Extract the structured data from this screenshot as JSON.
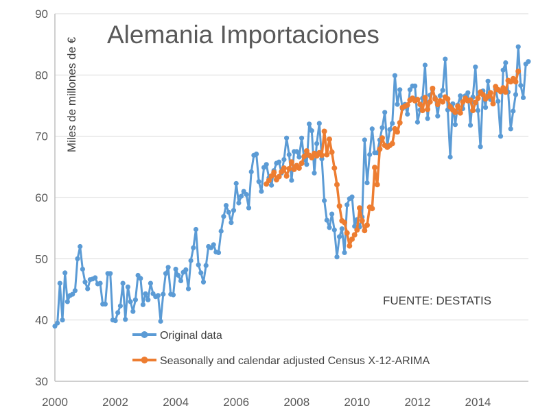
{
  "chart_data": {
    "type": "line",
    "title": "Alemania Importaciones",
    "ylabel": "Miles de millones de €",
    "xlabel": "",
    "source": "FUENTE: DESTATIS",
    "ylim": [
      30,
      90
    ],
    "xlim": [
      2000,
      2015.67
    ],
    "yticks": [
      30,
      40,
      50,
      60,
      70,
      80,
      90
    ],
    "xticks": [
      2000,
      2002,
      2004,
      2006,
      2008,
      2010,
      2012,
      2014
    ],
    "grid": true,
    "legend": "bottom-left, inside plot",
    "series": [
      {
        "name": "Original data",
        "color": "#5b9bd5",
        "x_start": 2000,
        "step": 0.0833333,
        "values": [
          39,
          39.5,
          46,
          40,
          47.7,
          43,
          44,
          44.2,
          44.8,
          50,
          52,
          48.3,
          46.2,
          45.1,
          46.6,
          46.7,
          46.9,
          45.9,
          46,
          42.6,
          42.6,
          47.6,
          47.6,
          40,
          39.9,
          41.2,
          42.3,
          46,
          40.1,
          45.4,
          43,
          41.4,
          43.3,
          47.3,
          46.8,
          42.5,
          44.3,
          43.3,
          46,
          44.3,
          43.8,
          44,
          39.8,
          44.2,
          47.6,
          48.6,
          44.2,
          44.1,
          48.3,
          47.3,
          46.4,
          47.8,
          48.2,
          45.1,
          49.7,
          51.8,
          54.8,
          49,
          47.7,
          46.2,
          48.9,
          52,
          51.8,
          52.3,
          51.1,
          51,
          54.5,
          56.9,
          58.7,
          57.6,
          55.9,
          57.9,
          62.3,
          59.1,
          60.2,
          61,
          60.5,
          58.3,
          64.2,
          66.9,
          67.1,
          62.6,
          61,
          64.9,
          65.4,
          63.2,
          62,
          64.4,
          65.6,
          65.8,
          64,
          66.2,
          69.7,
          67,
          62.8,
          67.5,
          67.5,
          66.6,
          69.7,
          66.2,
          65.4,
          72,
          70.9,
          64,
          68.8,
          72.1,
          66.3,
          59.5,
          56.3,
          55.1,
          57.3,
          54.7,
          50.3,
          53.6,
          54.9,
          51,
          58.8,
          59.8,
          60.1,
          55.3,
          56.4,
          55.2,
          56.8,
          69.4,
          62.4,
          67,
          71.2,
          67.3,
          67.3,
          69.4,
          71.4,
          73.9,
          68.4,
          71.1,
          72.1,
          79.9,
          75.2,
          77.6,
          74.5,
          75.2,
          73.6,
          77.6,
          78.2,
          78.2,
          72.3,
          74.3,
          76.2,
          81.6,
          72.9,
          76.7,
          77.6,
          76.3,
          73.3,
          76.6,
          77.5,
          82.6,
          74.3,
          66.6,
          75.3,
          71.9,
          75.1,
          76.6,
          74.5,
          76.6,
          77.1,
          71.8,
          76.4,
          81.3,
          74.2,
          68.3,
          77.4,
          74.7,
          79,
          76,
          75.4,
          77.7,
          75.7,
          70,
          80.8,
          82,
          77.2,
          71.2,
          74.1,
          76.8,
          84.6,
          78.3,
          76.3,
          81.8,
          82.2
        ]
      },
      {
        "name": "Seasonally and calendar adjusted Census X-12-ARIMA",
        "color": "#ed7d31",
        "x_start": 2007,
        "step": 0.0833333,
        "values": [
          62.2,
          62.8,
          63.5,
          64.1,
          62.9,
          63.4,
          64.2,
          64.8,
          63.5,
          64.7,
          65.8,
          64.6,
          65.2,
          64.8,
          65.6,
          66.7,
          67.6,
          66.9,
          66.5,
          67.2,
          66.8,
          67.3,
          66.9,
          70.8,
          67,
          69.5,
          67.4,
          64.8,
          62.1,
          58.6,
          56.2,
          55.9,
          54.2,
          52.1,
          53.2,
          53.9,
          54.7,
          58.3,
          56.2,
          54.6,
          55.5,
          58.4,
          58.2,
          64.9,
          62.1,
          67.9,
          69.7,
          68.5,
          68.2,
          68.5,
          68.8,
          71.2,
          70.7,
          72.2,
          74.7,
          74.9,
          75.1,
          75.9,
          76.2,
          75.8,
          76,
          75.2,
          74.2,
          76.3,
          74.4,
          75.6,
          77.8,
          76.1,
          75.2,
          75.8,
          75.6,
          76.4,
          76.1,
          74.8,
          74.3,
          73.9,
          74.9,
          73.8,
          75.6,
          76.2,
          75.8,
          75.9,
          74.2,
          75.5,
          76.2,
          77.2,
          76.8,
          76.1,
          76.5,
          77.1,
          75.3,
          78.1,
          77.6,
          77.3,
          77.9,
          77.2,
          79.1,
          78.9,
          79.4,
          78.9,
          80.6
        ]
      }
    ]
  }
}
